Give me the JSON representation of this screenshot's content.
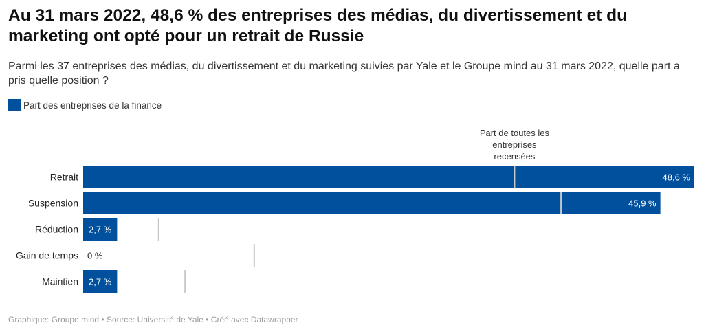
{
  "title": "Au 31 mars 2022, 48,6 % des entreprises des médias, du divertissement et du marketing ont opté pour un retrait de Russie",
  "subtitle": "Parmi les 37 entreprises des médias, du divertissement et du marketing suivies par Yale et le Groupe mind au 31 mars 2022, quelle part a pris quelle position ?",
  "legend": {
    "label": "Part des entreprises de la finance",
    "color": "#00509d"
  },
  "footer": "Graphique: Groupe mind • Source: Université de Yale • Créé avec Datawrapper",
  "chart_data": {
    "type": "bar",
    "orientation": "horizontal",
    "categories": [
      "Retrait",
      "Suspension",
      "Réduction",
      "Gain de temps",
      "Maintien"
    ],
    "values": [
      48.6,
      45.9,
      2.7,
      0,
      2.7
    ],
    "value_labels": [
      "48,6 %",
      "45,9 %",
      "2,7 %",
      "0 %",
      "2,7 %"
    ],
    "reference_values": [
      34.3,
      38.0,
      6.0,
      13.6,
      8.1
    ],
    "reference_label_lines": [
      "Part de toutes les",
      "entreprises",
      "recensées"
    ],
    "xlim": [
      0,
      48.6
    ],
    "bar_color": "#00509d",
    "reference_line_color": "#c8c8c8"
  }
}
